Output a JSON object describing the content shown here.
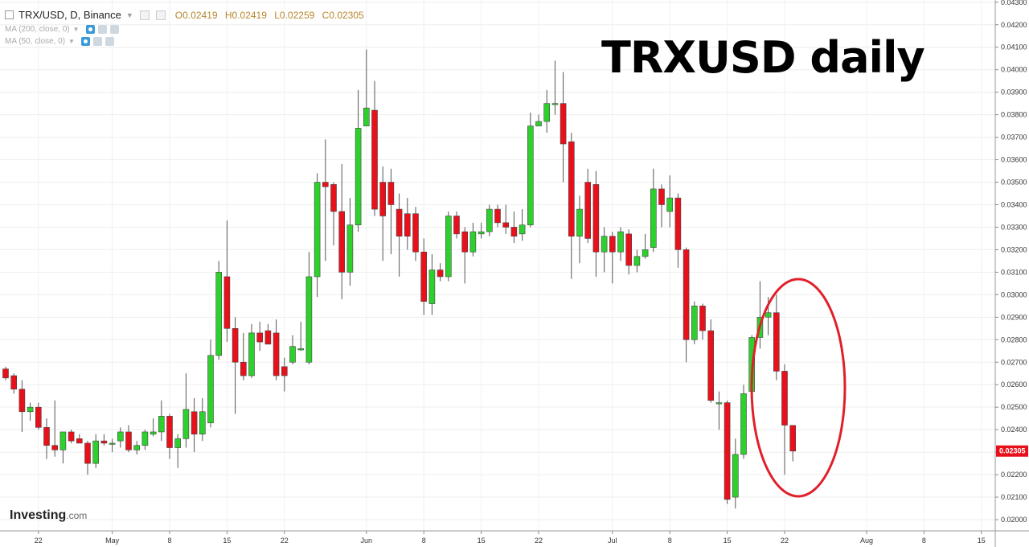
{
  "header": {
    "symbol": "TRX/USD, D, Binance",
    "open": "O0.02419",
    "high": "H0.02419",
    "low": "L0.02259",
    "close": "C0.02305",
    "ma1": "MA (200, close, 0)",
    "ma2": "MA (50, close, 0)"
  },
  "annotation": "TRXUSD daily",
  "logo": {
    "name": "Investing",
    "suffix": ".com"
  },
  "colors": {
    "up": "#2ed02e",
    "down": "#e8101a",
    "circle": "#e0202a",
    "last_price_bg": "#e8101a"
  },
  "chart_data": {
    "type": "candlestick",
    "yaxis": {
      "min": 0.0195,
      "max": 0.0431,
      "ticks": [
        "0.04300",
        "0.04200",
        "0.04100",
        "0.04000",
        "0.03900",
        "0.03800",
        "0.03700",
        "0.03600",
        "0.03500",
        "0.03400",
        "0.03300",
        "0.03200",
        "0.03100",
        "0.03000",
        "0.02900",
        "0.02800",
        "0.02700",
        "0.02600",
        "0.02500",
        "0.02400",
        "0.02300",
        "0.02200",
        "0.02100",
        "0.02000"
      ]
    },
    "last_price": "0.02305",
    "xaxis_ticks": [
      {
        "label": "22",
        "index": 4
      },
      {
        "label": "May",
        "index": 13
      },
      {
        "label": "8",
        "index": 20
      },
      {
        "label": "15",
        "index": 27
      },
      {
        "label": "22",
        "index": 34
      },
      {
        "label": "Jun",
        "index": 44
      },
      {
        "label": "8",
        "index": 51
      },
      {
        "label": "15",
        "index": 58
      },
      {
        "label": "22",
        "index": 65
      },
      {
        "label": "Jul",
        "index": 74
      },
      {
        "label": "8",
        "index": 81
      },
      {
        "label": "15",
        "index": 88
      },
      {
        "label": "22",
        "index": 95
      },
      {
        "label": "Aug",
        "index": 105
      },
      {
        "label": "8",
        "index": 112
      },
      {
        "label": "15",
        "index": 119
      }
    ],
    "candles": [
      {
        "o": 0.0267,
        "h": 0.0268,
        "l": 0.0262,
        "c": 0.0263
      },
      {
        "o": 0.0264,
        "h": 0.0265,
        "l": 0.0256,
        "c": 0.0258
      },
      {
        "o": 0.0258,
        "h": 0.0262,
        "l": 0.0239,
        "c": 0.0248
      },
      {
        "o": 0.0248,
        "h": 0.0252,
        "l": 0.0244,
        "c": 0.025
      },
      {
        "o": 0.025,
        "h": 0.0252,
        "l": 0.024,
        "c": 0.0241
      },
      {
        "o": 0.0241,
        "h": 0.0245,
        "l": 0.0227,
        "c": 0.0233
      },
      {
        "o": 0.0233,
        "h": 0.0253,
        "l": 0.0228,
        "c": 0.0231
      },
      {
        "o": 0.0231,
        "h": 0.0239,
        "l": 0.0225,
        "c": 0.0239
      },
      {
        "o": 0.0239,
        "h": 0.024,
        "l": 0.0234,
        "c": 0.0235
      },
      {
        "o": 0.0236,
        "h": 0.0238,
        "l": 0.0234,
        "c": 0.0234
      },
      {
        "o": 0.0234,
        "h": 0.0235,
        "l": 0.022,
        "c": 0.0225
      },
      {
        "o": 0.0225,
        "h": 0.0238,
        "l": 0.0223,
        "c": 0.0235
      },
      {
        "o": 0.0235,
        "h": 0.0238,
        "l": 0.0233,
        "c": 0.0234
      },
      {
        "o": 0.0234,
        "h": 0.0236,
        "l": 0.023,
        "c": 0.0234
      },
      {
        "o": 0.0235,
        "h": 0.0241,
        "l": 0.0232,
        "c": 0.0239
      },
      {
        "o": 0.0239,
        "h": 0.0242,
        "l": 0.023,
        "c": 0.0231
      },
      {
        "o": 0.0231,
        "h": 0.0235,
        "l": 0.0229,
        "c": 0.0233
      },
      {
        "o": 0.0233,
        "h": 0.024,
        "l": 0.0231,
        "c": 0.0239
      },
      {
        "o": 0.0238,
        "h": 0.0245,
        "l": 0.0237,
        "c": 0.0239
      },
      {
        "o": 0.0239,
        "h": 0.0253,
        "l": 0.0235,
        "c": 0.0246
      },
      {
        "o": 0.0246,
        "h": 0.0247,
        "l": 0.0227,
        "c": 0.0232
      },
      {
        "o": 0.0232,
        "h": 0.0238,
        "l": 0.0223,
        "c": 0.0236
      },
      {
        "o": 0.0236,
        "h": 0.0265,
        "l": 0.0232,
        "c": 0.0249
      },
      {
        "o": 0.0248,
        "h": 0.0254,
        "l": 0.023,
        "c": 0.0238
      },
      {
        "o": 0.0238,
        "h": 0.0254,
        "l": 0.0235,
        "c": 0.0248
      },
      {
        "o": 0.0243,
        "h": 0.028,
        "l": 0.0241,
        "c": 0.0273
      },
      {
        "o": 0.0273,
        "h": 0.0315,
        "l": 0.0271,
        "c": 0.031
      },
      {
        "o": 0.0308,
        "h": 0.0333,
        "l": 0.0279,
        "c": 0.0285
      },
      {
        "o": 0.0285,
        "h": 0.029,
        "l": 0.0247,
        "c": 0.027
      },
      {
        "o": 0.027,
        "h": 0.0283,
        "l": 0.0262,
        "c": 0.0264
      },
      {
        "o": 0.0264,
        "h": 0.0287,
        "l": 0.0263,
        "c": 0.0283
      },
      {
        "o": 0.0283,
        "h": 0.0288,
        "l": 0.0275,
        "c": 0.0279
      },
      {
        "o": 0.0284,
        "h": 0.0287,
        "l": 0.0278,
        "c": 0.0278
      },
      {
        "o": 0.0283,
        "h": 0.0289,
        "l": 0.0262,
        "c": 0.0264
      },
      {
        "o": 0.0268,
        "h": 0.0272,
        "l": 0.0257,
        "c": 0.0264
      },
      {
        "o": 0.027,
        "h": 0.0282,
        "l": 0.0269,
        "c": 0.0277
      },
      {
        "o": 0.0276,
        "h": 0.0288,
        "l": 0.0275,
        "c": 0.0276
      },
      {
        "o": 0.027,
        "h": 0.0319,
        "l": 0.0269,
        "c": 0.0308
      },
      {
        "o": 0.0308,
        "h": 0.0354,
        "l": 0.0299,
        "c": 0.035
      },
      {
        "o": 0.035,
        "h": 0.0369,
        "l": 0.0315,
        "c": 0.0348
      },
      {
        "o": 0.0349,
        "h": 0.035,
        "l": 0.0322,
        "c": 0.0337
      },
      {
        "o": 0.0337,
        "h": 0.0358,
        "l": 0.0298,
        "c": 0.031
      },
      {
        "o": 0.031,
        "h": 0.0343,
        "l": 0.0304,
        "c": 0.0331
      },
      {
        "o": 0.0331,
        "h": 0.0391,
        "l": 0.0328,
        "c": 0.0374
      },
      {
        "o": 0.0375,
        "h": 0.0409,
        "l": 0.0375,
        "c": 0.0383
      },
      {
        "o": 0.0382,
        "h": 0.0395,
        "l": 0.0335,
        "c": 0.0338
      },
      {
        "o": 0.035,
        "h": 0.0357,
        "l": 0.0315,
        "c": 0.0335
      },
      {
        "o": 0.035,
        "h": 0.0356,
        "l": 0.0318,
        "c": 0.034
      },
      {
        "o": 0.0338,
        "h": 0.0345,
        "l": 0.0308,
        "c": 0.0326
      },
      {
        "o": 0.0336,
        "h": 0.0343,
        "l": 0.032,
        "c": 0.0326
      },
      {
        "o": 0.0336,
        "h": 0.0339,
        "l": 0.0315,
        "c": 0.0319
      },
      {
        "o": 0.0319,
        "h": 0.0325,
        "l": 0.0291,
        "c": 0.0297
      },
      {
        "o": 0.0296,
        "h": 0.0318,
        "l": 0.0291,
        "c": 0.0311
      },
      {
        "o": 0.0311,
        "h": 0.0314,
        "l": 0.0306,
        "c": 0.0308
      },
      {
        "o": 0.0308,
        "h": 0.0337,
        "l": 0.0306,
        "c": 0.0335
      },
      {
        "o": 0.0335,
        "h": 0.0337,
        "l": 0.0325,
        "c": 0.0327
      },
      {
        "o": 0.0328,
        "h": 0.033,
        "l": 0.0305,
        "c": 0.0319
      },
      {
        "o": 0.0319,
        "h": 0.0332,
        "l": 0.0317,
        "c": 0.0328
      },
      {
        "o": 0.0327,
        "h": 0.0332,
        "l": 0.0325,
        "c": 0.0328
      },
      {
        "o": 0.0328,
        "h": 0.034,
        "l": 0.0326,
        "c": 0.0338
      },
      {
        "o": 0.0338,
        "h": 0.034,
        "l": 0.033,
        "c": 0.0332
      },
      {
        "o": 0.0332,
        "h": 0.034,
        "l": 0.0327,
        "c": 0.033
      },
      {
        "o": 0.033,
        "h": 0.0337,
        "l": 0.0323,
        "c": 0.0326
      },
      {
        "o": 0.0327,
        "h": 0.0338,
        "l": 0.0324,
        "c": 0.0331
      },
      {
        "o": 0.0331,
        "h": 0.0381,
        "l": 0.033,
        "c": 0.0375
      },
      {
        "o": 0.0375,
        "h": 0.038,
        "l": 0.0375,
        "c": 0.0377
      },
      {
        "o": 0.0377,
        "h": 0.0391,
        "l": 0.0372,
        "c": 0.0385
      },
      {
        "o": 0.0385,
        "h": 0.0404,
        "l": 0.038,
        "c": 0.0385
      },
      {
        "o": 0.0385,
        "h": 0.0399,
        "l": 0.035,
        "c": 0.0367
      },
      {
        "o": 0.0368,
        "h": 0.0372,
        "l": 0.0307,
        "c": 0.0326
      },
      {
        "o": 0.0326,
        "h": 0.0344,
        "l": 0.0314,
        "c": 0.0338
      },
      {
        "o": 0.035,
        "h": 0.0356,
        "l": 0.0323,
        "c": 0.0325
      },
      {
        "o": 0.0349,
        "h": 0.0355,
        "l": 0.0308,
        "c": 0.0319
      },
      {
        "o": 0.0319,
        "h": 0.033,
        "l": 0.031,
        "c": 0.0326
      },
      {
        "o": 0.0326,
        "h": 0.0328,
        "l": 0.0305,
        "c": 0.0319
      },
      {
        "o": 0.0319,
        "h": 0.033,
        "l": 0.0315,
        "c": 0.0328
      },
      {
        "o": 0.0327,
        "h": 0.0329,
        "l": 0.0309,
        "c": 0.0313
      },
      {
        "o": 0.0313,
        "h": 0.032,
        "l": 0.031,
        "c": 0.0317
      },
      {
        "o": 0.0317,
        "h": 0.0327,
        "l": 0.0316,
        "c": 0.032
      },
      {
        "o": 0.0321,
        "h": 0.0356,
        "l": 0.0319,
        "c": 0.0347
      },
      {
        "o": 0.0347,
        "h": 0.0349,
        "l": 0.033,
        "c": 0.034
      },
      {
        "o": 0.0337,
        "h": 0.0353,
        "l": 0.033,
        "c": 0.0343
      },
      {
        "o": 0.0343,
        "h": 0.0345,
        "l": 0.0312,
        "c": 0.032
      },
      {
        "o": 0.032,
        "h": 0.0321,
        "l": 0.027,
        "c": 0.028
      },
      {
        "o": 0.028,
        "h": 0.0297,
        "l": 0.0278,
        "c": 0.0295
      },
      {
        "o": 0.0295,
        "h": 0.0296,
        "l": 0.028,
        "c": 0.0284
      },
      {
        "o": 0.0284,
        "h": 0.0289,
        "l": 0.0252,
        "c": 0.0253
      },
      {
        "o": 0.0252,
        "h": 0.0257,
        "l": 0.024,
        "c": 0.0252
      },
      {
        "o": 0.0252,
        "h": 0.0253,
        "l": 0.0207,
        "c": 0.0209
      },
      {
        "o": 0.021,
        "h": 0.0236,
        "l": 0.0205,
        "c": 0.0229
      },
      {
        "o": 0.0229,
        "h": 0.026,
        "l": 0.0227,
        "c": 0.0256
      },
      {
        "o": 0.0257,
        "h": 0.0282,
        "l": 0.0249,
        "c": 0.0281
      },
      {
        "o": 0.0281,
        "h": 0.0306,
        "l": 0.0276,
        "c": 0.029
      },
      {
        "o": 0.029,
        "h": 0.0299,
        "l": 0.0282,
        "c": 0.0292
      },
      {
        "o": 0.0292,
        "h": 0.03,
        "l": 0.0262,
        "c": 0.0266
      },
      {
        "o": 0.0266,
        "h": 0.0269,
        "l": 0.022,
        "c": 0.0242
      },
      {
        "o": 0.02419,
        "h": 0.02419,
        "l": 0.02259,
        "c": 0.02305
      }
    ]
  }
}
